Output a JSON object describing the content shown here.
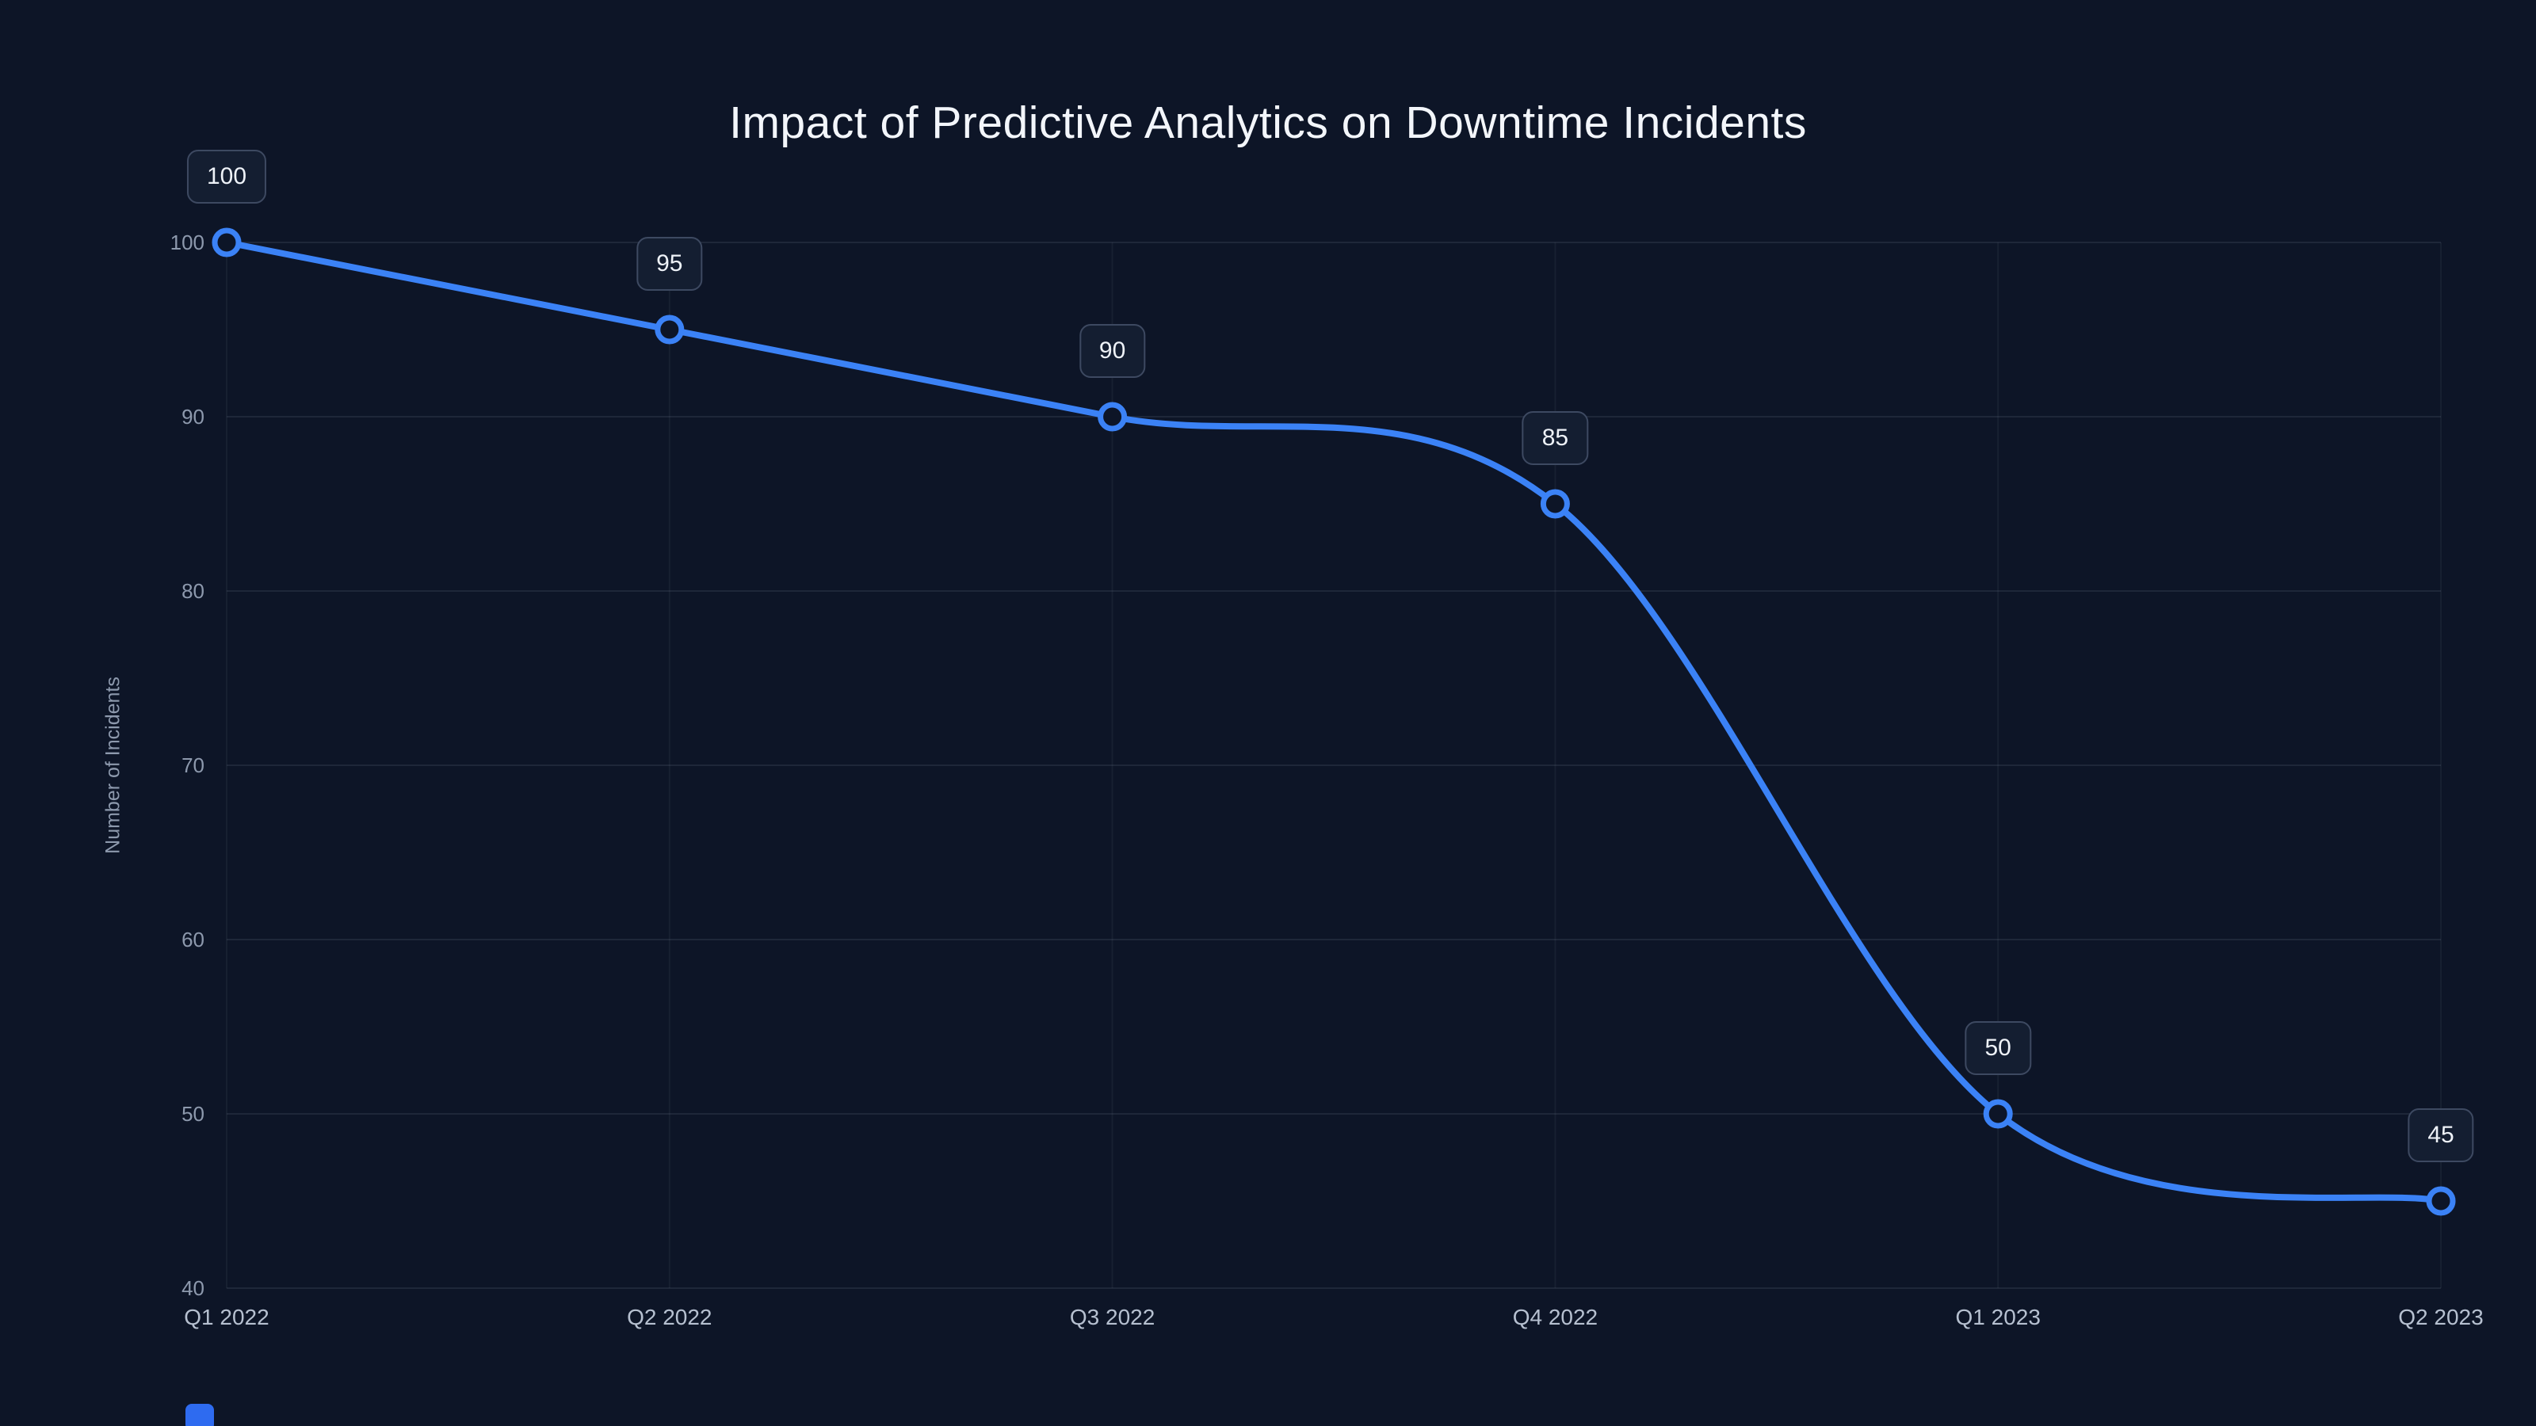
{
  "chart_data": {
    "type": "line",
    "title": "Impact of Predictive Analytics on Downtime Incidents",
    "xlabel": "",
    "ylabel": "Number of Incidents",
    "categories": [
      "Q1 2022",
      "Q2 2022",
      "Q3 2022",
      "Q4 2022",
      "Q1 2023",
      "Q2 2023"
    ],
    "values": [
      100,
      95,
      90,
      85,
      50,
      45
    ],
    "point_labels": [
      "100",
      "95",
      "90",
      "85",
      "50",
      "45"
    ],
    "ylim": [
      40,
      100
    ],
    "yticks": [
      40,
      50,
      60,
      70,
      80,
      90,
      100
    ],
    "grid": true,
    "legend": "none",
    "line_style": "smooth"
  },
  "colors": {
    "background": "#0d1527",
    "line": "#3b82f6",
    "marker_fill": "#0d1527",
    "grid": "rgba(148,163,184,0.13)",
    "title_text": "#f3f6fb",
    "tick_text": "#8d99ad",
    "label_box_bg": "#141e31",
    "label_box_border": "#3d4961"
  }
}
